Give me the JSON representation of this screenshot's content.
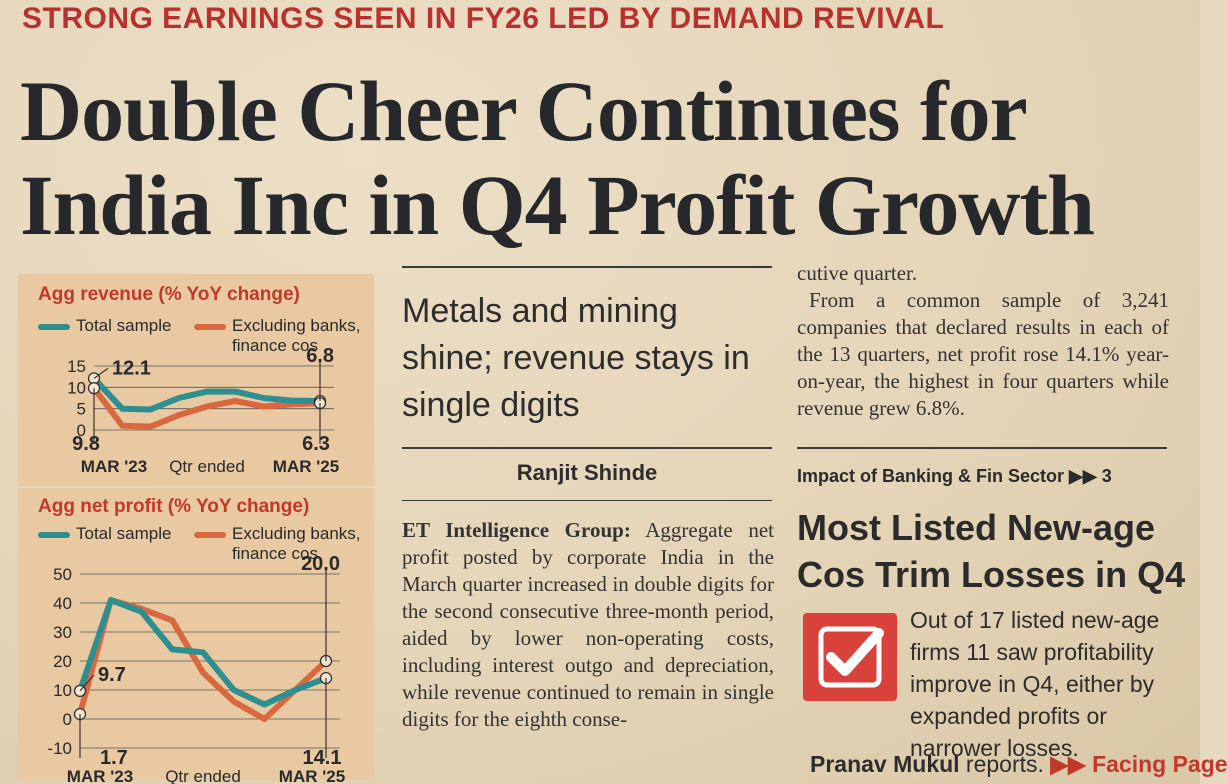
{
  "kicker": "STRONG EARNINGS SEEN IN FY26 LED BY DEMAND REVIVAL",
  "headline": "Double Cheer Continues for India Inc in Q4 Profit Growth",
  "colors": {
    "total": "#2e8f91",
    "excluding": "#d8683e",
    "kicker": "#b8312f",
    "panel": "#e8c9a2"
  },
  "chart_data": [
    {
      "type": "line",
      "title": "Agg revenue (% YoY change)",
      "legend": [
        "Total sample",
        "Excluding banks, finance cos"
      ],
      "x": [
        1,
        2,
        3,
        4,
        5,
        6,
        7,
        8,
        9
      ],
      "ylim": [
        0,
        15
      ],
      "yticks": [
        "15",
        "10",
        "5",
        "0"
      ],
      "xlabels": {
        "start": "MAR '23",
        "mid": "Qtr ended",
        "end": "MAR '25"
      },
      "series": [
        {
          "name": "Total sample",
          "values": [
            12.1,
            5.0,
            4.8,
            7.5,
            9.0,
            9.0,
            7.5,
            6.9,
            6.8
          ]
        },
        {
          "name": "Excluding banks, finance cos",
          "values": [
            9.8,
            1.0,
            0.8,
            3.5,
            5.5,
            6.8,
            5.5,
            6.0,
            6.3
          ]
        }
      ],
      "annotations": {
        "top_start": "12.1",
        "bottom_start": "9.8",
        "top_end": "6.8",
        "bottom_end": "6.3"
      }
    },
    {
      "type": "line",
      "title": "Agg net profit (% YoY change)",
      "legend": [
        "Total sample",
        "Excluding banks, finance cos"
      ],
      "x": [
        1,
        2,
        3,
        4,
        5,
        6,
        7,
        8,
        9
      ],
      "ylim": [
        -10,
        50
      ],
      "yticks": [
        "50",
        "40",
        "30",
        "20",
        "10",
        "0",
        "-10"
      ],
      "xlabels": {
        "start": "MAR '23",
        "mid": "Qtr ended",
        "end": "MAR '25"
      },
      "series": [
        {
          "name": "Total sample",
          "values": [
            9.7,
            41.0,
            37.0,
            24.0,
            23.0,
            10.0,
            5.0,
            10.0,
            14.1
          ]
        },
        {
          "name": "Excluding banks, finance cos",
          "values": [
            1.7,
            41.0,
            38.0,
            34.0,
            16.0,
            6.0,
            0.0,
            10.0,
            20.0
          ]
        }
      ],
      "annotations": {
        "top_start": "9.7",
        "bottom_start": "1.7",
        "top_end": "20.0",
        "bottom_end": "14.1"
      }
    }
  ],
  "deck": "Metals and mining shine; revenue stays in single digits",
  "byline": "Ranjit Shinde",
  "body": {
    "lead_label": "ET Intelligence Group:",
    "col1": " Aggregate net profit posted by corporate India in the March quarter increased in double digits for the second consecutive three-month period, aided by lower non-operating costs, including interest outgo and depreciation, while revenue continued to remain in single digits for the eighth conse-",
    "col2_continued": "cutive quarter.",
    "col2": "From a common sample of 3,241 companies that declared results in each of the 13 quarters, net profit rose 14.1% year-on-year, the highest in four quarters while revenue grew 6.8%."
  },
  "related": {
    "tag": "Impact of Banking & Fin Sector",
    "tag_page": "▶▶ 3",
    "headline": "Most Listed New-age Cos Trim Losses in Q4",
    "body": "Out of 17 listed new-age firms 11 saw profitability improve in Q4, either by expanded profits or narrower losses.",
    "author": "Pranav Mukul",
    "author_suffix": " reports.",
    "link": "▶▶ Facing Page"
  },
  "icons": {
    "check": "checkmark-icon"
  }
}
